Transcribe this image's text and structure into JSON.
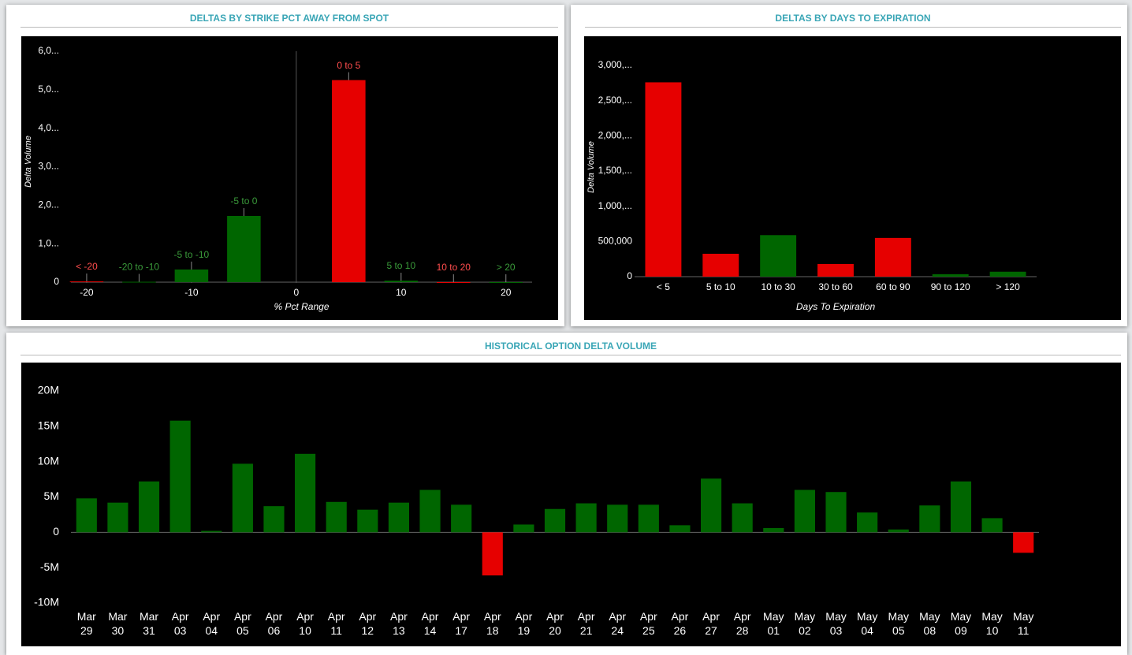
{
  "charts": [
    {
      "type": "bar",
      "title": "DELTAS BY STRIKE PCT AWAY FROM SPOT",
      "x_label": "% Pct Range",
      "y_label": "Delta Volume",
      "x": [
        -20,
        -15,
        -10,
        -5,
        5,
        10,
        15,
        20
      ],
      "values": [
        20,
        10,
        330,
        1720,
        5250,
        40,
        0,
        0
      ],
      "bar_labels": [
        "< -20",
        "-20 to -10",
        "-5 to -10",
        "-5 to 0",
        "0 to 5",
        "5 to 10",
        "10 to 20",
        "> 20"
      ],
      "colors": [
        "#e60000",
        "#006600",
        "#006600",
        "#006600",
        "#e60000",
        "#006600",
        "#e60000",
        "#006600"
      ],
      "label_colors": [
        "#ff4d4d",
        "#3a9a3a",
        "#3a9a3a",
        "#3a9a3a",
        "#ff4d4d",
        "#3a9a3a",
        "#ff4d4d",
        "#3a9a3a"
      ],
      "xlim": [
        -21.5,
        22.5
      ],
      "xticks": [
        -20,
        -10,
        0,
        10,
        20
      ],
      "ylim": [
        0,
        6000
      ],
      "yticks": [
        0,
        {
          "value": 1000,
          "label": "1,0..."
        },
        {
          "value": 2000,
          "label": "2,0..."
        },
        {
          "value": 3000,
          "label": "3,0..."
        },
        {
          "value": 4000,
          "label": "4,0..."
        },
        {
          "value": 5000,
          "label": "5,0..."
        },
        {
          "value": 6000,
          "label": "6,0..."
        }
      ]
    },
    {
      "type": "bar",
      "title": "DELTAS BY DAYS TO EXPIRATION",
      "x_label": "Days To Expiration",
      "y_label": "Delta Volume",
      "categories": [
        "< 5",
        "5 to 10",
        "10 to 30",
        "30 to 60",
        "60 to 90",
        "90 to 120",
        "> 120"
      ],
      "values": [
        2760000,
        325000,
        590000,
        180000,
        550000,
        35000,
        70000
      ],
      "colors": [
        "#e60000",
        "#e60000",
        "#006600",
        "#e60000",
        "#e60000",
        "#006600",
        "#006600"
      ],
      "ylim": [
        0,
        3000000
      ],
      "yticks": [
        0,
        {
          "value": 500000,
          "label": "500,000"
        },
        {
          "value": 1000000,
          "label": "1,000,..."
        },
        {
          "value": 1500000,
          "label": "1,500,..."
        },
        {
          "value": 2000000,
          "label": "2,000,..."
        },
        {
          "value": 2500000,
          "label": "2,500,..."
        },
        {
          "value": 3000000,
          "label": "3,000,..."
        }
      ]
    },
    {
      "type": "bar",
      "title": "HISTORICAL OPTION DELTA VOLUME",
      "categories": [
        "Mar 29",
        "Mar 30",
        "Mar 31",
        "Apr 03",
        "Apr 04",
        "Apr 05",
        "Apr 06",
        "Apr 10",
        "Apr 11",
        "Apr 12",
        "Apr 13",
        "Apr 14",
        "Apr 17",
        "Apr 18",
        "Apr 19",
        "Apr 20",
        "Apr 21",
        "Apr 24",
        "Apr 25",
        "Apr 26",
        "Apr 27",
        "Apr 28",
        "May 01",
        "May 02",
        "May 03",
        "May 04",
        "May 05",
        "May 08",
        "May 09",
        "May 10",
        "May 11"
      ],
      "values": [
        4800000,
        4200000,
        7200000,
        15800000,
        200000,
        9700000,
        3700000,
        11100000,
        4300000,
        3200000,
        4200000,
        6000000,
        3900000,
        -6100000,
        1100000,
        3300000,
        4100000,
        3900000,
        3900000,
        1000000,
        7600000,
        4100000,
        600000,
        6000000,
        5700000,
        2800000,
        400000,
        3800000,
        7200000,
        2000000,
        -2900000
      ],
      "positive_color": "#006600",
      "negative_color": "#e60000",
      "ylim": [
        -10000000,
        20000000
      ],
      "yticks": [
        {
          "value": -10000000,
          "label": "-10M"
        },
        {
          "value": -5000000,
          "label": "-5M"
        },
        0,
        {
          "value": 5000000,
          "label": "5M"
        },
        {
          "value": 10000000,
          "label": "10M"
        },
        {
          "value": 15000000,
          "label": "15M"
        },
        {
          "value": 20000000,
          "label": "20M"
        }
      ]
    }
  ]
}
